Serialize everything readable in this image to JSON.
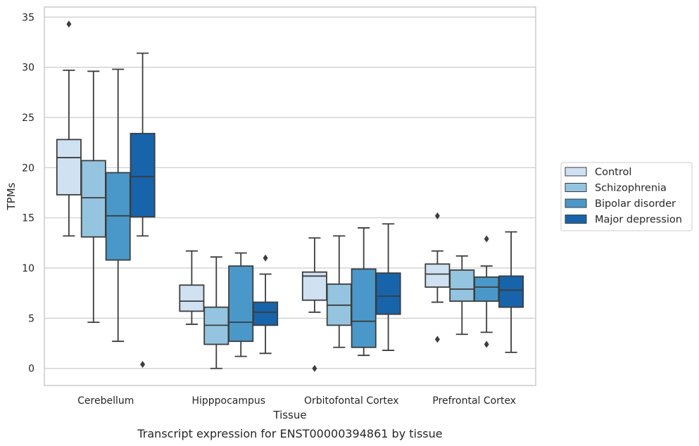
{
  "chart_data": {
    "type": "box",
    "title": "",
    "caption": "Transcript expression for ENST00000394861 by tissue",
    "xlabel": "Tissue",
    "ylabel": "TPMs",
    "ylim": [
      -1.7,
      36
    ],
    "yticks": [
      0,
      5,
      10,
      15,
      20,
      25,
      30,
      35
    ],
    "grid": "horizontal",
    "legend_position": "right",
    "categories": [
      "Cerebellum",
      "Hipppocampus",
      "Orbitofontal Cortex",
      "Prefrontal Cortex"
    ],
    "series": [
      {
        "name": "Control",
        "color": "#d0e1f2",
        "boxes": [
          {
            "whisker_low": 13.2,
            "q1": 17.3,
            "median": 21.0,
            "q3": 22.8,
            "whisker_high": 29.7,
            "outliers": [
              34.3
            ]
          },
          {
            "whisker_low": 4.4,
            "q1": 5.7,
            "median": 6.7,
            "q3": 8.3,
            "whisker_high": 11.7,
            "outliers": []
          },
          {
            "whisker_low": 5.6,
            "q1": 6.8,
            "median": 9.2,
            "q3": 9.6,
            "whisker_high": 13.0,
            "outliers": [
              0.0
            ]
          },
          {
            "whisker_low": 6.6,
            "q1": 8.1,
            "median": 9.4,
            "q3": 10.4,
            "whisker_high": 11.7,
            "outliers": [
              15.2,
              2.9
            ]
          }
        ]
      },
      {
        "name": "Schizophrenia",
        "color": "#94c4df",
        "boxes": [
          {
            "whisker_low": 4.6,
            "q1": 13.1,
            "median": 17.0,
            "q3": 20.7,
            "whisker_high": 29.6,
            "outliers": []
          },
          {
            "whisker_low": 0.0,
            "q1": 2.4,
            "median": 4.3,
            "q3": 6.1,
            "whisker_high": 11.1,
            "outliers": []
          },
          {
            "whisker_low": 2.1,
            "q1": 4.3,
            "median": 6.3,
            "q3": 8.4,
            "whisker_high": 13.2,
            "outliers": []
          },
          {
            "whisker_low": 3.4,
            "q1": 6.7,
            "median": 7.9,
            "q3": 9.8,
            "whisker_high": 11.2,
            "outliers": []
          }
        ]
      },
      {
        "name": "Bipolar disorder",
        "color": "#4a98c9",
        "boxes": [
          {
            "whisker_low": 2.7,
            "q1": 10.8,
            "median": 15.2,
            "q3": 19.5,
            "whisker_high": 29.8,
            "outliers": []
          },
          {
            "whisker_low": 1.2,
            "q1": 2.7,
            "median": 4.6,
            "q3": 10.2,
            "whisker_high": 11.5,
            "outliers": []
          },
          {
            "whisker_low": 1.3,
            "q1": 2.1,
            "median": 4.7,
            "q3": 9.9,
            "whisker_high": 14.0,
            "outliers": []
          },
          {
            "whisker_low": 3.6,
            "q1": 6.7,
            "median": 8.1,
            "q3": 9.1,
            "whisker_high": 10.2,
            "outliers": [
              12.9,
              2.4
            ]
          }
        ]
      },
      {
        "name": "Major depression",
        "color": "#1764ab",
        "boxes": [
          {
            "whisker_low": 13.2,
            "q1": 15.1,
            "median": 19.1,
            "q3": 23.4,
            "whisker_high": 31.4,
            "outliers": [
              0.4
            ]
          },
          {
            "whisker_low": 1.5,
            "q1": 4.3,
            "median": 5.6,
            "q3": 6.6,
            "whisker_high": 9.4,
            "outliers": [
              11.0
            ]
          },
          {
            "whisker_low": 1.8,
            "q1": 5.4,
            "median": 7.2,
            "q3": 9.5,
            "whisker_high": 14.4,
            "outliers": []
          },
          {
            "whisker_low": 1.6,
            "q1": 6.1,
            "median": 7.8,
            "q3": 9.2,
            "whisker_high": 13.6,
            "outliers": []
          }
        ]
      }
    ]
  }
}
